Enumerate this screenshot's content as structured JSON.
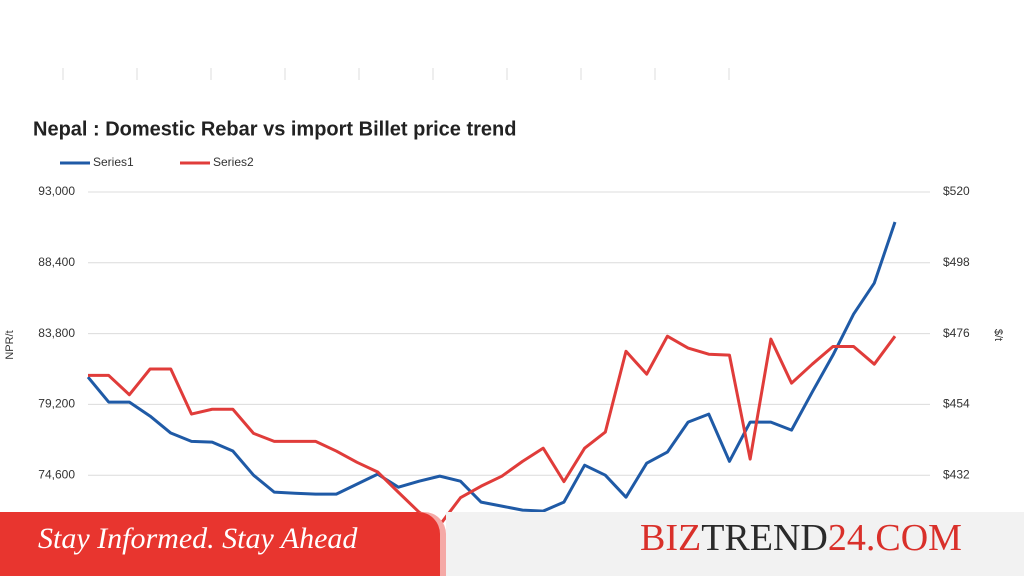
{
  "chart_data": {
    "type": "line",
    "title": "Nepal : Domestic Rebar vs import Billet price trend",
    "ylabel": "NPR/t",
    "y2label": "$/t",
    "ylim": [
      70000,
      93000
    ],
    "yticks": [
      {
        "value": 74600,
        "label": "74,600"
      },
      {
        "value": 79200,
        "label": "79,200"
      },
      {
        "value": 83800,
        "label": "83,800"
      },
      {
        "value": 88400,
        "label": "88,400"
      },
      {
        "value": 93000,
        "label": "93,000"
      }
    ],
    "y2lim": [
      410,
      520
    ],
    "y2ticks": [
      {
        "value": 432,
        "label": "$432"
      },
      {
        "value": 454,
        "label": "$454"
      },
      {
        "value": 476,
        "label": "$476"
      },
      {
        "value": 498,
        "label": "$498"
      },
      {
        "value": 520,
        "label": "$520"
      }
    ],
    "grid": true,
    "series": [
      {
        "name": "Series1",
        "color": "#1f5aa6",
        "values": [
          80975,
          79350,
          79350,
          78440,
          77340,
          76800,
          76750,
          76170,
          74600,
          73500,
          73430,
          73370,
          73370,
          74020,
          74670,
          73820,
          74210,
          74540,
          74210,
          72850,
          72590,
          72330,
          72270,
          72850,
          75250,
          74600,
          73170,
          75380,
          76100,
          78050,
          78570,
          75500,
          78050,
          78050,
          77530,
          80000,
          82400,
          85070,
          87085,
          91050
        ]
      },
      {
        "name": "Series2",
        "color": "#e03c3a",
        "axis": "y2",
        "values": [
          463,
          463,
          457,
          465,
          465,
          451,
          452.5,
          452.5,
          445,
          442.5,
          442.5,
          442.5,
          439.5,
          436,
          433,
          426.7,
          420.5,
          416.5,
          425,
          428.6,
          431.7,
          436.3,
          440.4,
          430,
          440.4,
          445.4,
          470.5,
          463.4,
          475.2,
          471.5,
          469.6,
          469.3,
          437,
          474.3,
          460.6,
          466.5,
          472,
          472,
          466.5,
          475.2
        ]
      }
    ]
  },
  "banner": {
    "tagline": "Stay Informed. Stay Ahead",
    "brand": [
      "BIZ",
      "TREND",
      "24.COM"
    ]
  }
}
